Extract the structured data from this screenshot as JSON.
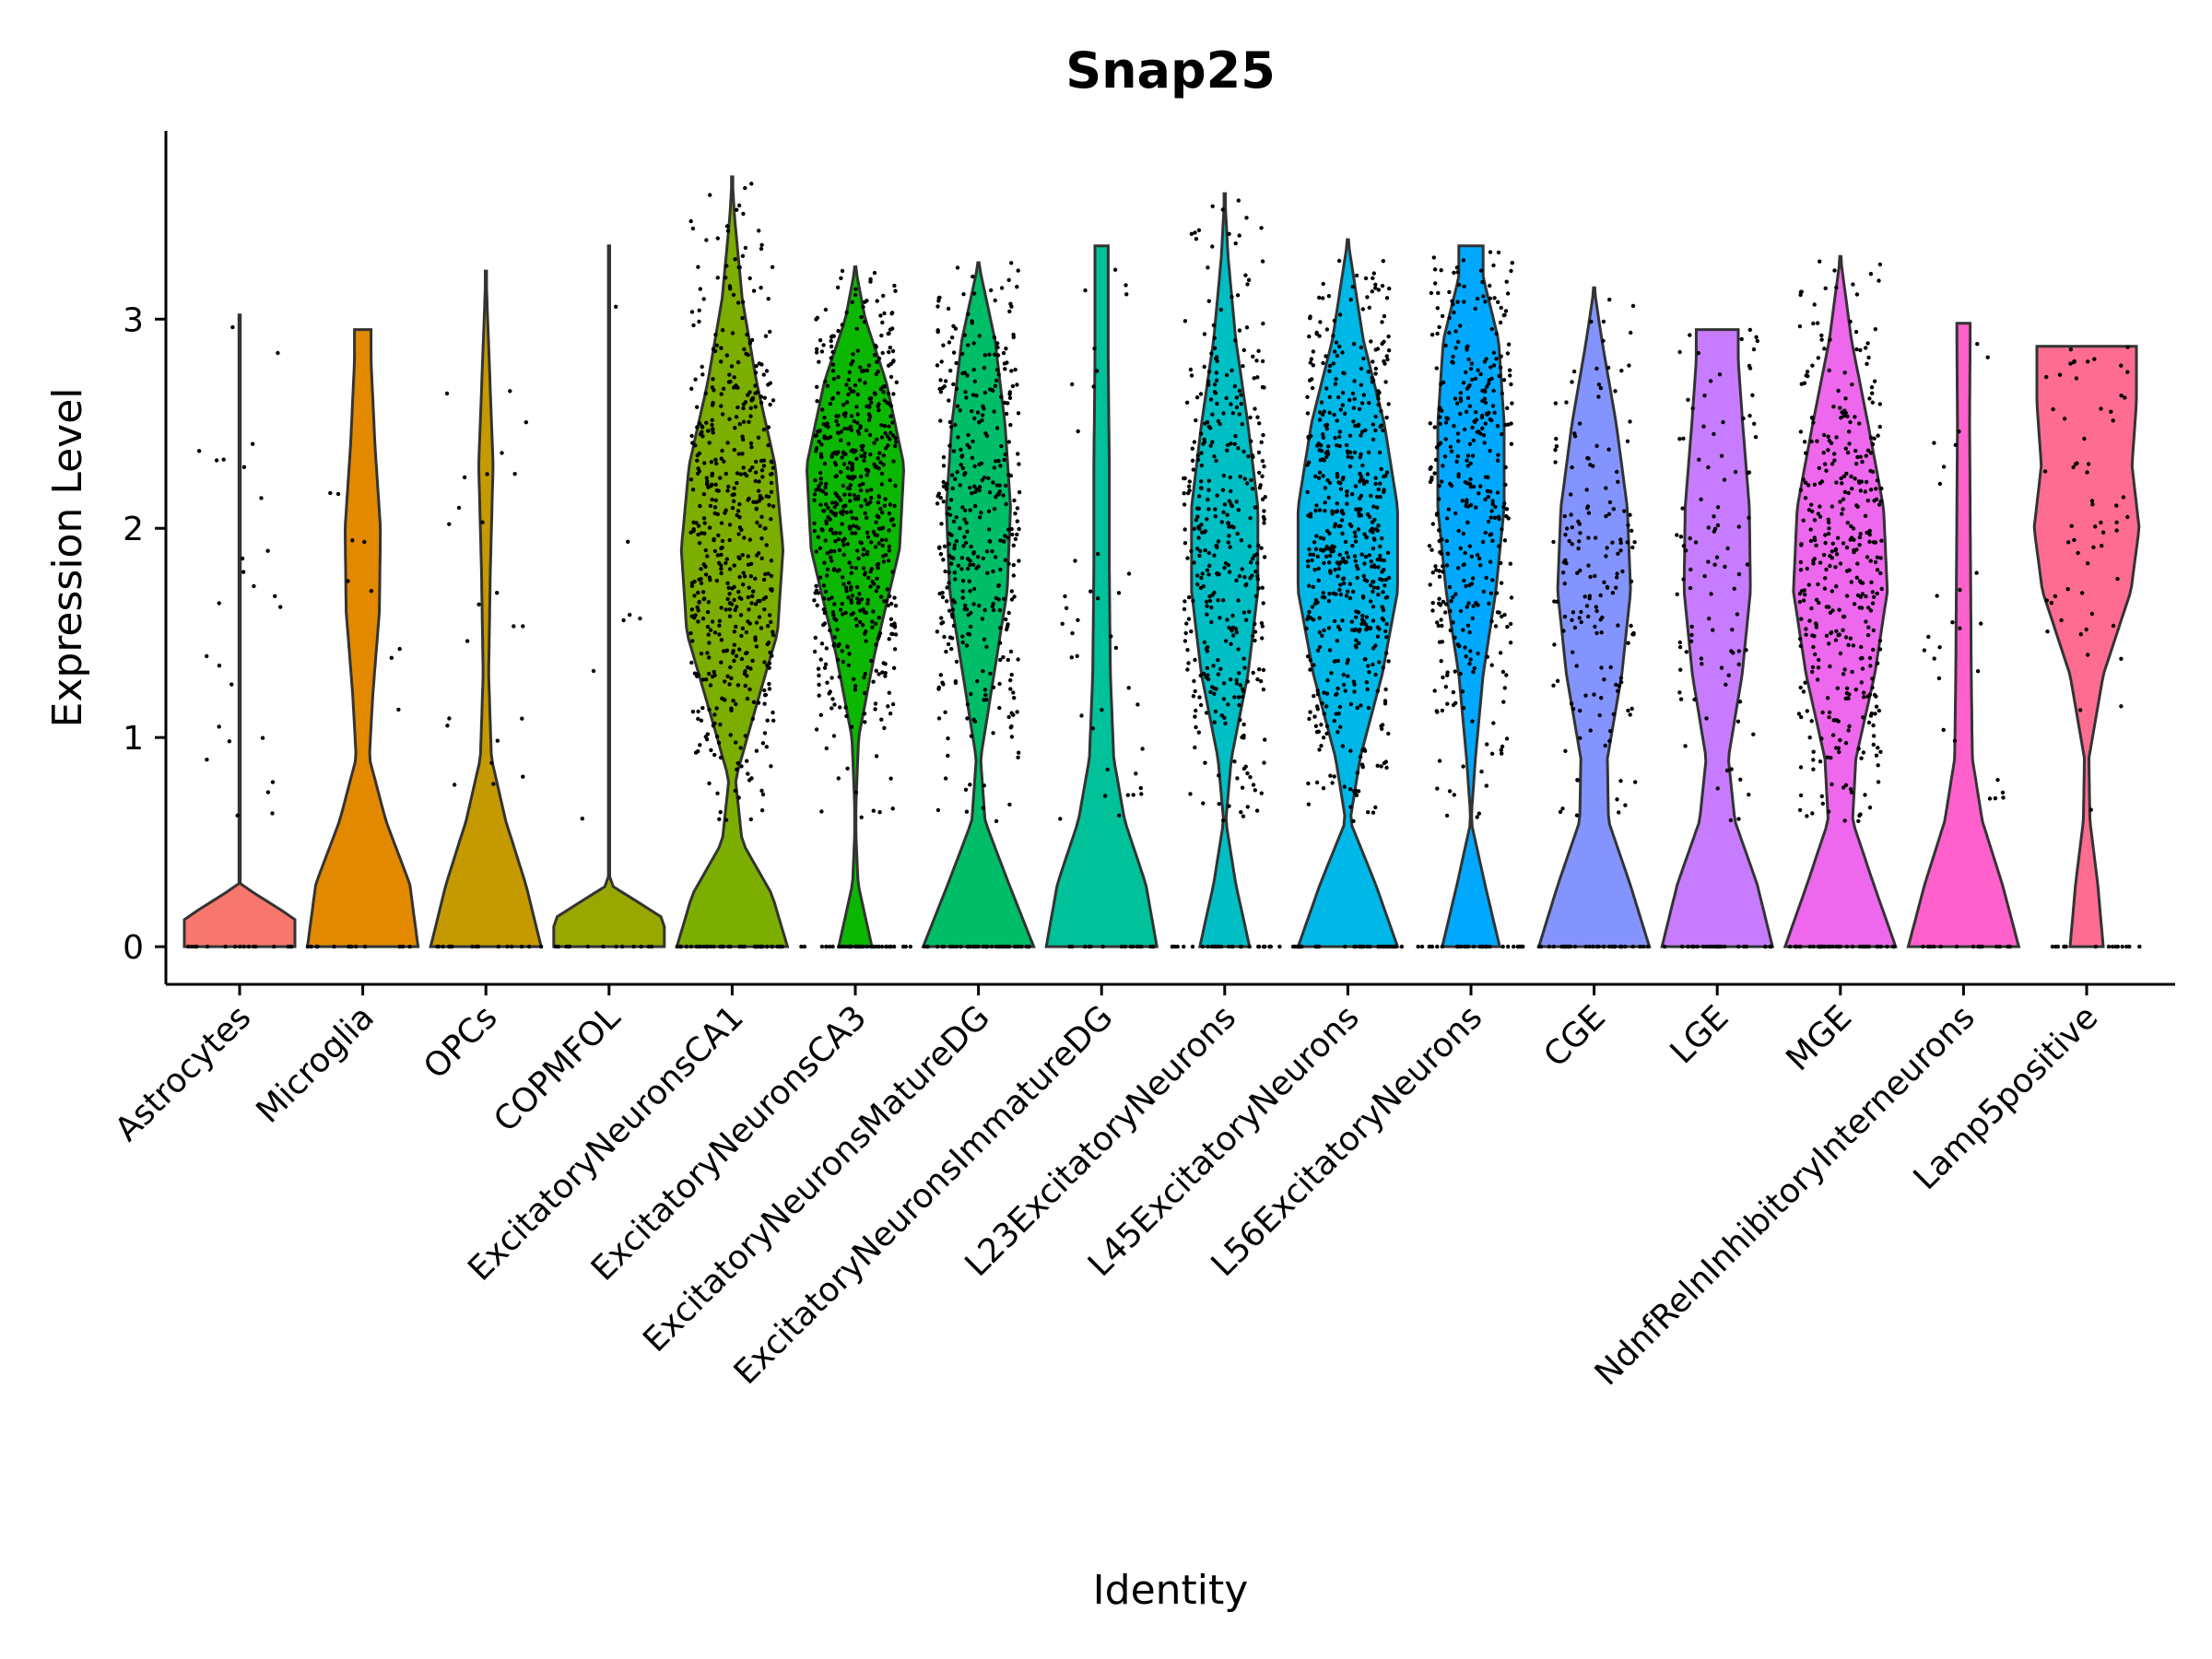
{
  "chart_data": {
    "type": "violin",
    "title": "Snap25",
    "xlabel": "Identity",
    "ylabel": "Expression Level",
    "ylim": [
      -0.18,
      3.9
    ],
    "yticks": [
      0,
      1,
      2,
      3
    ],
    "grid": false,
    "legend": "none",
    "categories": [
      {
        "name": "Astrocytes",
        "color": "#F8766D",
        "max": 3.02,
        "n": 40,
        "profile": [
          [
            0,
            20
          ],
          [
            0.05,
            1.5
          ],
          [
            0.3,
            0
          ],
          [
            3.02,
            0
          ]
        ]
      },
      {
        "name": "Microglia",
        "color": "#E38900",
        "max": 2.95,
        "n": 14,
        "profile": [
          [
            0,
            1
          ],
          [
            0.3,
            0.85
          ],
          [
            0.6,
            0.42
          ],
          [
            0.9,
            0.12
          ],
          [
            1.2,
            0.18
          ],
          [
            1.6,
            0.3
          ],
          [
            2.0,
            0.32
          ],
          [
            2.4,
            0.22
          ],
          [
            2.8,
            0.15
          ],
          [
            2.95,
            0.15
          ]
        ]
      },
      {
        "name": "OPCs",
        "color": "#C49A00",
        "max": 3.23,
        "n": 36,
        "profile": [
          [
            0,
            1
          ],
          [
            0.3,
            0.72
          ],
          [
            0.6,
            0.36
          ],
          [
            0.9,
            0.1
          ],
          [
            1.3,
            0.05
          ],
          [
            1.8,
            0.08
          ],
          [
            2.3,
            0.13
          ],
          [
            2.8,
            0.06
          ],
          [
            3.23,
            0.0
          ]
        ]
      },
      {
        "name": "COPMFOL",
        "color": "#99A800",
        "max": 3.35,
        "n": 10,
        "profile": [
          [
            0,
            20
          ],
          [
            0.05,
            1.5
          ],
          [
            0.3,
            0
          ],
          [
            3.35,
            0
          ]
        ]
      },
      {
        "name": "ExcitatoryNeuronsCA1",
        "color": "#7CAE00",
        "max": 3.68,
        "n": 800,
        "profile": [
          [
            0,
            1
          ],
          [
            0.25,
            0.72
          ],
          [
            0.5,
            0.18
          ],
          [
            0.8,
            0.06
          ],
          [
            1.1,
            0.38
          ],
          [
            1.5,
            0.82
          ],
          [
            1.9,
            0.92
          ],
          [
            2.3,
            0.78
          ],
          [
            2.7,
            0.44
          ],
          [
            3.1,
            0.18
          ],
          [
            3.5,
            0.04
          ],
          [
            3.68,
            0
          ]
        ]
      },
      {
        "name": "ExcitatoryNeuronsCA3",
        "color": "#0CB702",
        "max": 3.25,
        "n": 700,
        "profile": [
          [
            0,
            0.3
          ],
          [
            0.3,
            0.05
          ],
          [
            0.6,
            0.0
          ],
          [
            1.0,
            0.06
          ],
          [
            1.4,
            0.35
          ],
          [
            1.9,
            0.8
          ],
          [
            2.3,
            0.88
          ],
          [
            2.7,
            0.56
          ],
          [
            3.0,
            0.18
          ],
          [
            3.25,
            0
          ]
        ]
      },
      {
        "name": "ExcitatoryNeuronsMatureDG",
        "color": "#00BE67",
        "max": 3.27,
        "n": 600,
        "profile": [
          [
            0,
            1
          ],
          [
            0.3,
            0.55
          ],
          [
            0.6,
            0.12
          ],
          [
            0.9,
            0.04
          ],
          [
            1.3,
            0.28
          ],
          [
            1.7,
            0.52
          ],
          [
            2.1,
            0.58
          ],
          [
            2.5,
            0.48
          ],
          [
            2.9,
            0.3
          ],
          [
            3.27,
            0.0
          ]
        ]
      },
      {
        "name": "ExcitatoryNeuronsImmatureDG",
        "color": "#00C19A",
        "max": 3.35,
        "n": 60,
        "profile": [
          [
            0,
            1
          ],
          [
            0.3,
            0.8
          ],
          [
            0.6,
            0.42
          ],
          [
            0.9,
            0.22
          ],
          [
            1.3,
            0.16
          ],
          [
            1.8,
            0.14
          ],
          [
            2.3,
            0.14
          ],
          [
            2.8,
            0.12
          ],
          [
            3.35,
            0.12
          ]
        ]
      },
      {
        "name": "L23ExcitatoryNeurons",
        "color": "#00BFC4",
        "max": 3.6,
        "n": 450,
        "profile": [
          [
            0,
            0.45
          ],
          [
            0.3,
            0.2
          ],
          [
            0.6,
            0.02
          ],
          [
            0.9,
            0.12
          ],
          [
            1.3,
            0.42
          ],
          [
            1.7,
            0.6
          ],
          [
            2.1,
            0.6
          ],
          [
            2.5,
            0.42
          ],
          [
            2.9,
            0.2
          ],
          [
            3.3,
            0.06
          ],
          [
            3.6,
            0
          ]
        ]
      },
      {
        "name": "L45ExcitatoryNeurons",
        "color": "#00B8E7",
        "max": 3.38,
        "n": 650,
        "profile": [
          [
            0,
            0.9
          ],
          [
            0.3,
            0.5
          ],
          [
            0.6,
            0.04
          ],
          [
            0.9,
            0.22
          ],
          [
            1.3,
            0.62
          ],
          [
            1.7,
            0.9
          ],
          [
            2.1,
            0.9
          ],
          [
            2.5,
            0.66
          ],
          [
            2.9,
            0.28
          ],
          [
            3.38,
            0
          ]
        ]
      },
      {
        "name": "L56ExcitatoryNeurons",
        "color": "#00A9FF",
        "max": 3.35,
        "n": 450,
        "profile": [
          [
            0,
            0.52
          ],
          [
            0.3,
            0.25
          ],
          [
            0.6,
            0.0
          ],
          [
            0.9,
            0.08
          ],
          [
            1.3,
            0.22
          ],
          [
            1.7,
            0.45
          ],
          [
            2.1,
            0.6
          ],
          [
            2.5,
            0.6
          ],
          [
            2.9,
            0.5
          ],
          [
            3.2,
            0.22
          ],
          [
            3.35,
            0.22
          ]
        ]
      },
      {
        "name": "CGE",
        "color": "#8494FF",
        "max": 3.15,
        "n": 250,
        "profile": [
          [
            0,
            1
          ],
          [
            0.3,
            0.65
          ],
          [
            0.6,
            0.26
          ],
          [
            0.9,
            0.24
          ],
          [
            1.3,
            0.5
          ],
          [
            1.7,
            0.66
          ],
          [
            2.1,
            0.6
          ],
          [
            2.5,
            0.4
          ],
          [
            2.9,
            0.14
          ],
          [
            3.15,
            0
          ]
        ]
      },
      {
        "name": "LGE",
        "color": "#C77CFF",
        "max": 2.95,
        "n": 150,
        "profile": [
          [
            0,
            1
          ],
          [
            0.3,
            0.72
          ],
          [
            0.6,
            0.32
          ],
          [
            0.9,
            0.2
          ],
          [
            1.3,
            0.45
          ],
          [
            1.7,
            0.6
          ],
          [
            2.1,
            0.58
          ],
          [
            2.5,
            0.46
          ],
          [
            2.8,
            0.38
          ],
          [
            2.95,
            0.38
          ]
        ]
      },
      {
        "name": "MGE",
        "color": "#ED68ED",
        "max": 3.3,
        "n": 600,
        "profile": [
          [
            0,
            1
          ],
          [
            0.3,
            0.6
          ],
          [
            0.6,
            0.22
          ],
          [
            0.9,
            0.28
          ],
          [
            1.3,
            0.62
          ],
          [
            1.7,
            0.85
          ],
          [
            2.1,
            0.78
          ],
          [
            2.5,
            0.5
          ],
          [
            2.9,
            0.2
          ],
          [
            3.3,
            0
          ]
        ]
      },
      {
        "name": "NdnfRelnInhibitoryInterneurons",
        "color": "#FF61CC",
        "max": 2.98,
        "n": 40,
        "profile": [
          [
            0,
            1
          ],
          [
            0.3,
            0.7
          ],
          [
            0.6,
            0.34
          ],
          [
            0.9,
            0.16
          ],
          [
            1.3,
            0.14
          ],
          [
            1.7,
            0.13
          ],
          [
            2.1,
            0.12
          ],
          [
            2.5,
            0.11
          ],
          [
            2.9,
            0.12
          ],
          [
            2.98,
            0.12
          ]
        ]
      },
      {
        "name": "Lamp5positive",
        "color": "#FF6C91",
        "max": 2.87,
        "n": 70,
        "profile": [
          [
            0,
            0.3
          ],
          [
            0.3,
            0.2
          ],
          [
            0.6,
            0.06
          ],
          [
            0.9,
            0.04
          ],
          [
            1.3,
            0.3
          ],
          [
            1.7,
            0.8
          ],
          [
            2.0,
            0.95
          ],
          [
            2.3,
            0.82
          ],
          [
            2.6,
            0.9
          ],
          [
            2.87,
            0.9
          ]
        ]
      }
    ]
  }
}
